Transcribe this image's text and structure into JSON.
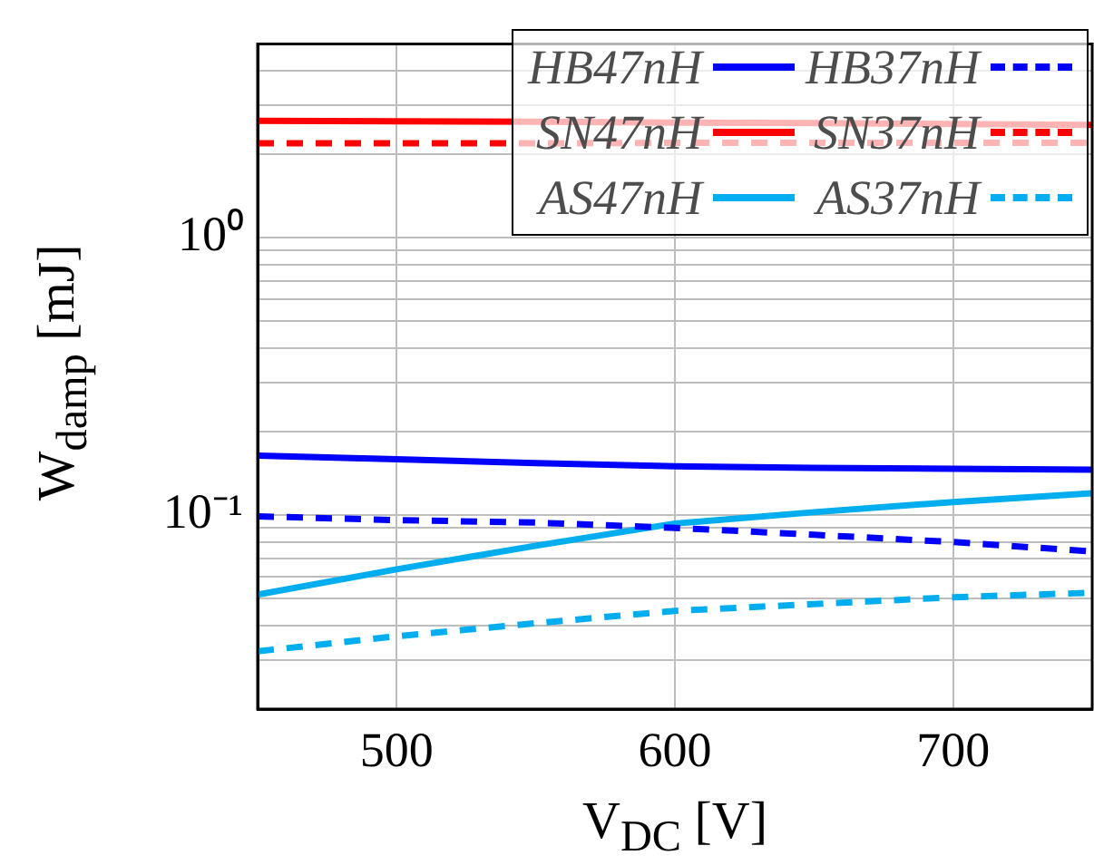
{
  "chart_data": {
    "type": "line",
    "xlabel": "V$_{DC}$ [V]",
    "ylabel": "W$_{damp}$ [mJ]",
    "log": "y",
    "grid": true,
    "legend": "top right",
    "marker": "none",
    "xlim": [
      450,
      750
    ],
    "xticks": [
      500,
      600,
      700
    ],
    "ylim": [
      0.02,
      5
    ],
    "yticks": [
      {
        "value": 0.02,
        "label": null
      },
      {
        "value": 0.03,
        "label": null
      },
      {
        "value": 0.04,
        "label": null
      },
      {
        "value": 0.05,
        "label": null
      },
      {
        "value": 0.06,
        "label": null
      },
      {
        "value": 0.07,
        "label": null
      },
      {
        "value": 0.08,
        "label": null
      },
      {
        "value": 0.09,
        "label": null
      },
      {
        "value": 0.1,
        "label": "10⁻¹"
      },
      {
        "value": 0.2,
        "label": null
      },
      {
        "value": 0.3,
        "label": null
      },
      {
        "value": 0.4,
        "label": null
      },
      {
        "value": 0.5,
        "label": null
      },
      {
        "value": 0.6,
        "label": null
      },
      {
        "value": 0.7,
        "label": null
      },
      {
        "value": 0.8,
        "label": null
      },
      {
        "value": 0.9,
        "label": null
      },
      {
        "value": 1,
        "label": "10⁰"
      },
      {
        "value": 2,
        "label": null
      },
      {
        "value": 3,
        "label": null
      },
      {
        "value": 4,
        "label": null
      },
      {
        "value": 5,
        "label": null
      }
    ],
    "x": [
      450,
      500,
      550,
      600,
      650,
      700,
      750
    ],
    "series": [
      {
        "name": "HB47nH",
        "color": "#0000ff",
        "line_style": "solid",
        "values": [
          0.164,
          0.159,
          0.154,
          0.15,
          0.148,
          0.147,
          0.146
        ]
      },
      {
        "name": "HB37nH",
        "color": "#0000ff",
        "line_style": "dashed",
        "values": [
          0.099,
          0.096,
          0.094,
          0.09,
          0.085,
          0.08,
          0.074
        ]
      },
      {
        "name": "SN47nH",
        "color": "#ff0000",
        "line_style": "solid",
        "values": [
          2.64,
          2.63,
          2.62,
          2.6,
          2.59,
          2.57,
          2.55
        ]
      },
      {
        "name": "SN37nH",
        "color": "#ff0000",
        "line_style": "dashed",
        "values": [
          2.19,
          2.19,
          2.19,
          2.2,
          2.2,
          2.2,
          2.2
        ]
      },
      {
        "name": "AS47nH",
        "color": "#00aeef",
        "line_style": "solid",
        "values": [
          0.0517,
          0.0638,
          0.0776,
          0.0933,
          0.1025,
          0.1115,
          0.12
        ]
      },
      {
        "name": "AS37nH",
        "color": "#00aeef",
        "line_style": "dashed",
        "values": [
          0.0323,
          0.0366,
          0.0408,
          0.0452,
          0.0478,
          0.0506,
          0.0525
        ]
      }
    ]
  }
}
